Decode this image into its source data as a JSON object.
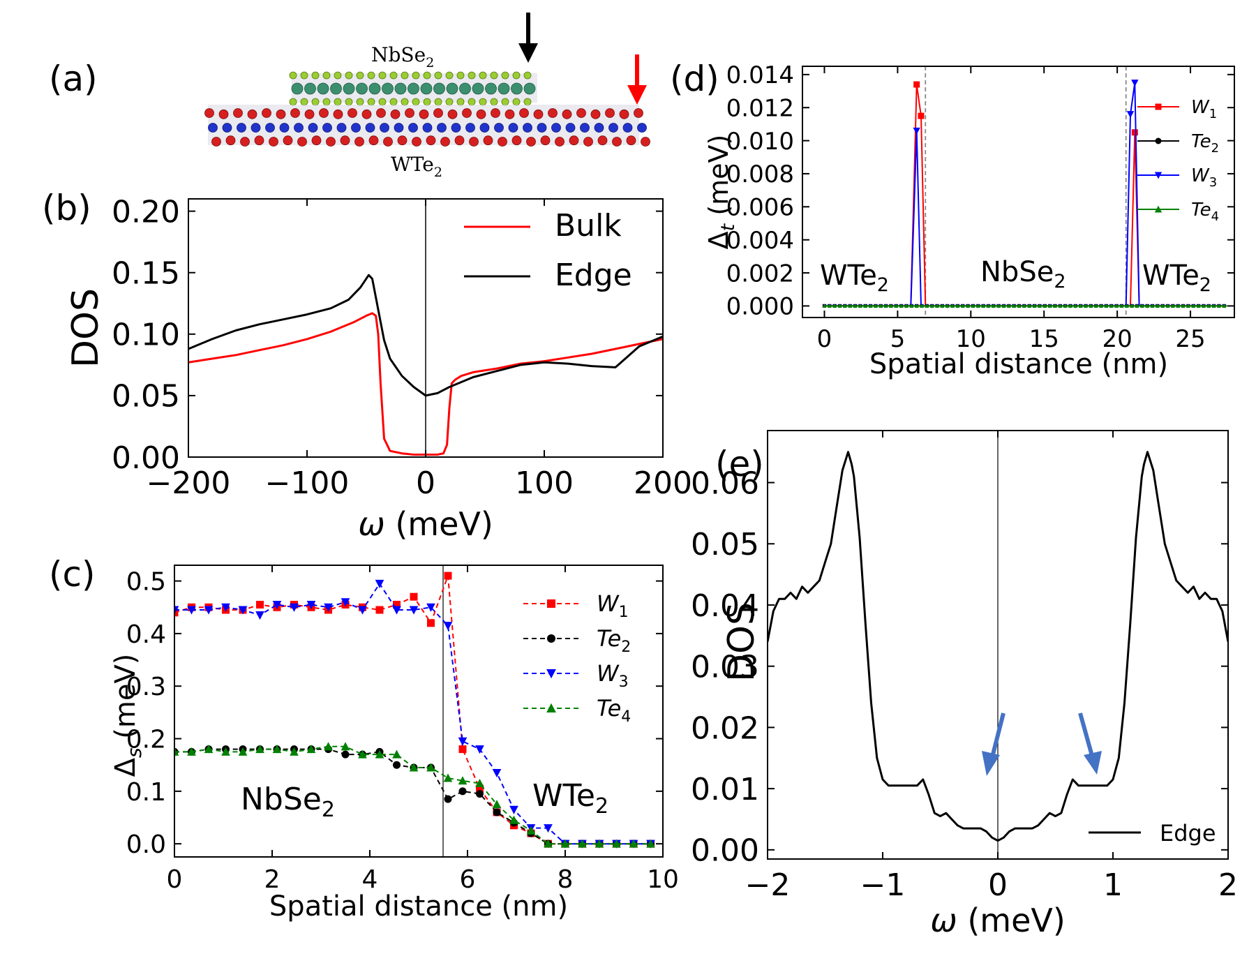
{
  "panel_labels": {
    "a": "(a)",
    "b": "(b)",
    "c": "(c)",
    "d": "(d)",
    "e": "(e)"
  },
  "structure": {
    "top_layer": "NbSe",
    "top_sub": "2",
    "bottom_layer": "WTe",
    "bottom_sub": "2",
    "arrow_colors": {
      "black": "#000000",
      "red": "#ff0000"
    },
    "atom_colors": {
      "se": "#9acd32",
      "nb": "#3c8f6e",
      "te": "#d62020",
      "w": "#2233cc"
    }
  },
  "chart_data": [
    {
      "id": "b",
      "type": "line",
      "xlabel": "ω (meV)",
      "ylabel": "DOS",
      "xlim": [
        -200,
        200
      ],
      "ylim": [
        0,
        0.21
      ],
      "xticks": [
        -200,
        -100,
        0,
        100,
        200
      ],
      "xtick_labels": [
        "−200",
        "−100",
        "0",
        "100",
        "200"
      ],
      "yticks": [
        0.0,
        0.05,
        0.1,
        0.15,
        0.2
      ],
      "ytick_labels": [
        "0.00",
        "0.05",
        "0.10",
        "0.15",
        "0.20"
      ],
      "legend": "top-right",
      "series": [
        {
          "name": "Bulk",
          "color": "#ff0000",
          "x": [
            -200,
            -180,
            -160,
            -140,
            -120,
            -100,
            -80,
            -60,
            -50,
            -45,
            -42,
            -40,
            -38,
            -35,
            -30,
            -20,
            -10,
            0,
            10,
            15,
            18,
            20,
            22,
            25,
            30,
            40,
            60,
            80,
            100,
            120,
            140,
            160,
            180,
            200
          ],
          "y": [
            0.077,
            0.08,
            0.083,
            0.087,
            0.091,
            0.096,
            0.102,
            0.11,
            0.115,
            0.117,
            0.115,
            0.1,
            0.06,
            0.015,
            0.005,
            0.003,
            0.002,
            0.002,
            0.002,
            0.003,
            0.01,
            0.04,
            0.06,
            0.063,
            0.066,
            0.069,
            0.072,
            0.076,
            0.078,
            0.081,
            0.084,
            0.088,
            0.092,
            0.096
          ]
        },
        {
          "name": "Edge",
          "color": "#000000",
          "x": [
            -200,
            -180,
            -160,
            -140,
            -120,
            -100,
            -80,
            -65,
            -55,
            -48,
            -45,
            -40,
            -35,
            -30,
            -20,
            -10,
            0,
            10,
            20,
            40,
            60,
            80,
            100,
            120,
            140,
            160,
            180,
            200
          ],
          "y": [
            0.088,
            0.096,
            0.103,
            0.108,
            0.112,
            0.116,
            0.121,
            0.128,
            0.138,
            0.148,
            0.145,
            0.12,
            0.095,
            0.08,
            0.066,
            0.057,
            0.05,
            0.052,
            0.057,
            0.065,
            0.07,
            0.075,
            0.077,
            0.076,
            0.074,
            0.073,
            0.09,
            0.098
          ]
        }
      ]
    },
    {
      "id": "c",
      "type": "line",
      "xlabel": "Spatial distance (nm)",
      "ylabel": "Δs (meV)",
      "xlim": [
        0,
        10
      ],
      "ylim": [
        -0.025,
        0.53
      ],
      "xticks": [
        0,
        2,
        4,
        6,
        8,
        10
      ],
      "xtick_labels": [
        "0",
        "2",
        "4",
        "6",
        "8",
        "10"
      ],
      "yticks": [
        0.0,
        0.1,
        0.2,
        0.3,
        0.4,
        0.5
      ],
      "ytick_labels": [
        "0.0",
        "0.1",
        "0.2",
        "0.3",
        "0.4",
        "0.5"
      ],
      "vline": 5.5,
      "annotations": [
        {
          "text": "NbSe",
          "sub": "2"
        },
        {
          "text": "WTe",
          "sub": "2"
        }
      ],
      "legend": "top-right",
      "series": [
        {
          "name": "W",
          "sub": "1",
          "color": "#ff0000",
          "marker": "square",
          "x": [
            0,
            0.35,
            0.7,
            1.05,
            1.4,
            1.75,
            2.1,
            2.45,
            2.8,
            3.15,
            3.5,
            3.85,
            4.2,
            4.55,
            4.9,
            5.25,
            5.6,
            5.9,
            6.25,
            6.6,
            6.95,
            7.3,
            7.65,
            8.0,
            8.35,
            8.7,
            9.05,
            9.4,
            9.75
          ],
          "y": [
            0.44,
            0.45,
            0.45,
            0.445,
            0.445,
            0.455,
            0.45,
            0.455,
            0.45,
            0.445,
            0.455,
            0.45,
            0.445,
            0.455,
            0.47,
            0.42,
            0.51,
            0.18,
            0.105,
            0.06,
            0.035,
            0.02,
            0.0,
            0.0,
            0.0,
            0.0,
            0.0,
            0.0,
            0.0
          ]
        },
        {
          "name": "Te",
          "sub": "2",
          "color": "#000000",
          "marker": "circle",
          "x": [
            0,
            0.35,
            0.7,
            1.05,
            1.4,
            1.75,
            2.1,
            2.45,
            2.8,
            3.15,
            3.5,
            3.85,
            4.2,
            4.55,
            4.9,
            5.25,
            5.6,
            5.9,
            6.25,
            6.6,
            6.95,
            7.3,
            7.65,
            8.0,
            8.35,
            8.7,
            9.05,
            9.4,
            9.75
          ],
          "y": [
            0.175,
            0.175,
            0.18,
            0.18,
            0.18,
            0.18,
            0.18,
            0.18,
            0.18,
            0.18,
            0.17,
            0.17,
            0.175,
            0.15,
            0.145,
            0.145,
            0.085,
            0.1,
            0.095,
            0.06,
            0.04,
            0.02,
            0.0,
            0.0,
            0.0,
            0.0,
            0.0,
            0.0,
            0.0
          ]
        },
        {
          "name": "W",
          "sub": "3",
          "color": "#0000ff",
          "marker": "triangle-down",
          "x": [
            0,
            0.35,
            0.7,
            1.05,
            1.4,
            1.75,
            2.1,
            2.45,
            2.8,
            3.15,
            3.5,
            3.85,
            4.2,
            4.55,
            4.9,
            5.25,
            5.6,
            5.9,
            6.25,
            6.6,
            6.95,
            7.3,
            7.65,
            8.0,
            8.35,
            8.7,
            9.05,
            9.4,
            9.75
          ],
          "y": [
            0.445,
            0.445,
            0.445,
            0.45,
            0.445,
            0.435,
            0.455,
            0.45,
            0.455,
            0.45,
            0.46,
            0.445,
            0.495,
            0.445,
            0.445,
            0.45,
            0.415,
            0.195,
            0.18,
            0.135,
            0.065,
            0.03,
            0.03,
            0.0,
            0.0,
            0.0,
            0.0,
            0.0,
            0.0
          ]
        },
        {
          "name": "Te",
          "sub": "4",
          "color": "#008000",
          "marker": "triangle-up",
          "x": [
            0,
            0.35,
            0.7,
            1.05,
            1.4,
            1.75,
            2.1,
            2.45,
            2.8,
            3.15,
            3.5,
            3.85,
            4.2,
            4.55,
            4.9,
            5.25,
            5.6,
            5.9,
            6.25,
            6.6,
            6.95,
            7.3,
            7.65,
            8.0,
            8.35,
            8.7,
            9.05,
            9.4,
            9.75
          ],
          "y": [
            0.175,
            0.175,
            0.18,
            0.175,
            0.175,
            0.18,
            0.18,
            0.175,
            0.18,
            0.185,
            0.185,
            0.17,
            0.17,
            0.17,
            0.145,
            0.145,
            0.125,
            0.12,
            0.115,
            0.075,
            0.045,
            0.025,
            0.0,
            0.0,
            0.0,
            0.0,
            0.0,
            0.0,
            0.0
          ]
        }
      ]
    },
    {
      "id": "d",
      "type": "line",
      "xlabel": "Spatial distance (nm)",
      "ylabel": "Δt (meV)",
      "xlim": [
        -1.5,
        28
      ],
      "ylim": [
        -0.0007,
        0.0145
      ],
      "xticks": [
        0,
        5,
        10,
        15,
        20,
        25
      ],
      "xtick_labels": [
        "0",
        "5",
        "10",
        "15",
        "20",
        "25"
      ],
      "yticks": [
        0.0,
        0.002,
        0.004,
        0.006,
        0.008,
        0.01,
        0.012,
        0.014
      ],
      "ytick_labels": [
        "0.000",
        "0.002",
        "0.004",
        "0.006",
        "0.008",
        "0.010",
        "0.012",
        "0.014"
      ],
      "vlines": [
        6.9,
        20.6
      ],
      "annotations": [
        {
          "text": "WTe",
          "sub": "2"
        },
        {
          "text": "NbSe",
          "sub": "2"
        },
        {
          "text": "WTe",
          "sub": "2"
        }
      ],
      "legend": "right",
      "series": [
        {
          "name": "W",
          "sub": "1",
          "color": "#ff0000",
          "marker": "square",
          "x": [
            0,
            5.9,
            6.3,
            6.6,
            6.9,
            20.6,
            20.9,
            21.2,
            21.5,
            27.5
          ],
          "y": [
            0,
            0,
            0.0134,
            0.0115,
            0,
            0,
            0,
            0.0105,
            0,
            0
          ],
          "marker_points": [
            [
              6.3,
              0.0134
            ],
            [
              6.6,
              0.0115
            ],
            [
              21.2,
              0.0105
            ]
          ]
        },
        {
          "name": "Te",
          "sub": "2",
          "color": "#000000",
          "marker": "circle",
          "x": [
            0,
            27.5
          ],
          "y": [
            0,
            0
          ],
          "marker_points": []
        },
        {
          "name": "W",
          "sub": "3",
          "color": "#0000ff",
          "marker": "triangle-down",
          "x": [
            0,
            5.9,
            6.3,
            6.6,
            20.3,
            20.6,
            20.9,
            21.2,
            21.5,
            27.5
          ],
          "y": [
            0,
            0,
            0.0106,
            0,
            0,
            0,
            0.0116,
            0.0135,
            0,
            0
          ],
          "marker_points": [
            [
              6.3,
              0.0106
            ],
            [
              20.9,
              0.0116
            ],
            [
              21.2,
              0.0135
            ]
          ]
        },
        {
          "name": "Te",
          "sub": "4",
          "color": "#008000",
          "marker": "triangle-up",
          "x": [
            0,
            27.5
          ],
          "y": [
            0,
            0
          ],
          "marker_points": []
        }
      ]
    },
    {
      "id": "e",
      "type": "line",
      "xlabel": "ω (meV)",
      "ylabel": "DOS",
      "xlim": [
        -2,
        2
      ],
      "ylim": [
        -0.0015,
        0.0685
      ],
      "xticks": [
        -2,
        -1,
        0,
        1,
        2
      ],
      "xtick_labels": [
        "−2",
        "−1",
        "0",
        "1",
        "2"
      ],
      "yticks": [
        0.0,
        0.01,
        0.02,
        0.03,
        0.04,
        0.05,
        0.06
      ],
      "ytick_labels": [
        "0.00",
        "0.01",
        "0.02",
        "0.03",
        "0.04",
        "0.05",
        "0.06"
      ],
      "legend": "bottom-right",
      "arrow_color": "#4472c4",
      "series": [
        {
          "name": "Edge",
          "color": "#000000",
          "x": [
            -2,
            -1.95,
            -1.9,
            -1.85,
            -1.8,
            -1.75,
            -1.7,
            -1.65,
            -1.6,
            -1.55,
            -1.5,
            -1.45,
            -1.4,
            -1.35,
            -1.3,
            -1.27,
            -1.25,
            -1.2,
            -1.15,
            -1.1,
            -1.05,
            -1.0,
            -0.95,
            -0.9,
            -0.85,
            -0.8,
            -0.75,
            -0.7,
            -0.65,
            -0.6,
            -0.55,
            -0.5,
            -0.45,
            -0.4,
            -0.35,
            -0.3,
            -0.25,
            -0.2,
            -0.15,
            -0.1,
            -0.05,
            0.0,
            0.05,
            0.1,
            0.15,
            0.2,
            0.25,
            0.3,
            0.35,
            0.4,
            0.45,
            0.5,
            0.55,
            0.6,
            0.65,
            0.7,
            0.75,
            0.8,
            0.85,
            0.9,
            0.95,
            1.0,
            1.05,
            1.1,
            1.15,
            1.2,
            1.25,
            1.27,
            1.3,
            1.35,
            1.4,
            1.45,
            1.5,
            1.55,
            1.6,
            1.65,
            1.7,
            1.75,
            1.8,
            1.85,
            1.9,
            1.95,
            2.0
          ],
          "y": [
            0.034,
            0.039,
            0.041,
            0.041,
            0.042,
            0.041,
            0.043,
            0.042,
            0.043,
            0.044,
            0.047,
            0.05,
            0.056,
            0.062,
            0.065,
            0.063,
            0.061,
            0.051,
            0.037,
            0.024,
            0.015,
            0.0115,
            0.0105,
            0.0105,
            0.0105,
            0.0105,
            0.0105,
            0.0105,
            0.0115,
            0.009,
            0.006,
            0.0055,
            0.006,
            0.005,
            0.004,
            0.0035,
            0.0035,
            0.0035,
            0.0035,
            0.003,
            0.002,
            0.0015,
            0.002,
            0.003,
            0.0035,
            0.0035,
            0.0035,
            0.0035,
            0.004,
            0.005,
            0.006,
            0.0055,
            0.006,
            0.009,
            0.0115,
            0.0105,
            0.0105,
            0.0105,
            0.0105,
            0.0105,
            0.0105,
            0.0115,
            0.015,
            0.024,
            0.037,
            0.051,
            0.061,
            0.063,
            0.065,
            0.062,
            0.056,
            0.05,
            0.047,
            0.044,
            0.043,
            0.042,
            0.043,
            0.041,
            0.042,
            0.041,
            0.041,
            0.039,
            0.034
          ]
        }
      ]
    }
  ]
}
